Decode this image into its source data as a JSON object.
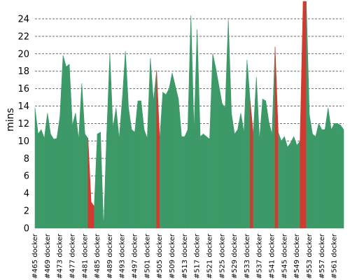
{
  "chart_data": {
    "type": "area",
    "title": "",
    "xlabel": "",
    "ylabel": "mins",
    "ylim": [
      0,
      26
    ],
    "yticks": [
      0,
      2,
      4,
      6,
      8,
      10,
      12,
      14,
      16,
      18,
      20,
      22,
      24
    ],
    "grid": true,
    "x_start": 465,
    "x_end": 564,
    "x_tick_labels": [
      "#465 docker",
      "#469 docker",
      "#473 docker",
      "#477 docker",
      "#481 docker",
      "#485 docker",
      "#489 docker",
      "#493 docker",
      "#497 docker",
      "#501 docker",
      "#505 docker",
      "#509 docker",
      "#513 docker",
      "#517 docker",
      "#521 docker",
      "#525 docker",
      "#529 docker",
      "#533 docker",
      "#537 docker",
      "#541 docker",
      "#545 docker",
      "#549 docker",
      "#553 docker",
      "#557 docker",
      "#561 docker"
    ],
    "x_tick_builds": [
      465,
      469,
      473,
      477,
      481,
      485,
      489,
      493,
      497,
      501,
      505,
      509,
      513,
      517,
      521,
      525,
      529,
      533,
      537,
      541,
      545,
      549,
      553,
      557,
      561
    ],
    "values": [
      13.8,
      10.8,
      11.3,
      10.3,
      13.2,
      10.8,
      10.2,
      10.3,
      12.8,
      19.8,
      18.5,
      18.8,
      11.8,
      13.2,
      10.2,
      16.6,
      10.8,
      10.3,
      3.0,
      2.5,
      10.8,
      11.0,
      0,
      10.8,
      20.0,
      11.5,
      13.8,
      10.3,
      14.8,
      20.3,
      13.8,
      11.3,
      11.0,
      14.6,
      14.6,
      11.3,
      10.3,
      19.5,
      14.6,
      18.1,
      10.2,
      15.6,
      15.3,
      16.0,
      17.8,
      16.3,
      14.8,
      10.5,
      10.5,
      11.3,
      24.4,
      11.3,
      22.8,
      10.5,
      10.8,
      10.5,
      10.2,
      20.0,
      18.3,
      16.3,
      14.3,
      13.8,
      23.9,
      13.2,
      10.8,
      11.3,
      13.2,
      11.0,
      19.3,
      14.6,
      10.8,
      17.3,
      10.2,
      14.8,
      14.6,
      12.2,
      10.8,
      20.8,
      11.0,
      10.0,
      10.5,
      9.3,
      9.8,
      10.5,
      9.5,
      10.0,
      26.0,
      26.0,
      13.0,
      10.8,
      10.5,
      12.0,
      11.3,
      11.3,
      13.8,
      11.3,
      12.0,
      12.0,
      11.8,
      11.3
    ],
    "failed_builds": [
      483,
      484,
      505,
      535,
      543,
      551,
      552
    ],
    "series_colors": {
      "success": "#3d9968",
      "failure": "#d23a31"
    }
  }
}
